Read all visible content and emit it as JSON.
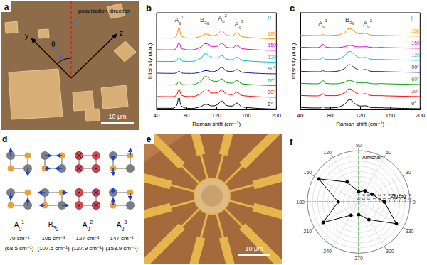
{
  "chart_data": [
    {
      "type": "line",
      "title": "b",
      "subtitle": "//",
      "xlabel": "Raman shift (cm⁻¹)",
      "ylabel": "Intensity (a.u.)",
      "x": [
        40,
        60,
        66,
        70,
        74,
        85,
        98,
        106,
        114,
        121,
        127,
        134,
        141,
        147,
        155,
        200
      ],
      "xlim": [
        40,
        200
      ],
      "xticks": [
        40,
        80,
        120,
        160,
        200
      ],
      "ylim": [
        0,
        6.6
      ],
      "tick_labels": "x",
      "series": [
        {
          "name": "0°",
          "color": "#000000",
          "values": [
            0.08,
            0.08,
            0.2,
            0.8,
            0.2,
            0.07,
            0.17,
            0.35,
            0.24,
            0.32,
            0.57,
            0.26,
            0.23,
            0.43,
            0.16,
            0.03
          ]
        },
        {
          "name": "30°",
          "color": "#ff0000",
          "values": [
            0.88,
            0.87,
            0.95,
            1.35,
            0.95,
            0.88,
            1.05,
            1.35,
            1.12,
            1.13,
            1.33,
            1.04,
            1.01,
            1.17,
            0.94,
            0.83
          ]
        },
        {
          "name": "60°",
          "color": "#00a000",
          "values": [
            1.68,
            1.67,
            1.7,
            1.9,
            1.7,
            1.68,
            1.89,
            2.25,
            1.96,
            1.92,
            2.08,
            1.82,
            1.8,
            1.97,
            1.74,
            1.63
          ]
        },
        {
          "name": "90°",
          "color": "#1a1aa0",
          "values": [
            2.48,
            2.46,
            2.48,
            2.6,
            2.48,
            2.46,
            2.53,
            2.65,
            2.58,
            2.66,
            2.86,
            2.62,
            2.59,
            2.72,
            2.53,
            2.43
          ]
        },
        {
          "name": "120°",
          "color": "#00c0d0",
          "values": [
            3.28,
            3.27,
            3.31,
            3.55,
            3.31,
            3.28,
            3.47,
            3.8,
            3.54,
            3.51,
            3.68,
            3.42,
            3.4,
            3.57,
            3.34,
            3.23
          ]
        },
        {
          "name": "150°",
          "color": "#e000e0",
          "values": [
            4.08,
            4.07,
            4.15,
            4.55,
            4.15,
            4.07,
            4.23,
            4.5,
            4.3,
            4.32,
            4.52,
            4.24,
            4.21,
            4.37,
            4.14,
            4.03
          ]
        },
        {
          "name": "180°",
          "color": "#ff8c00",
          "values": [
            4.88,
            4.87,
            4.99,
            5.55,
            4.99,
            4.87,
            4.97,
            5.15,
            5.04,
            5.12,
            5.37,
            5.06,
            5.03,
            5.23,
            4.96,
            4.83
          ]
        }
      ],
      "annotations": [
        {
          "base": "A",
          "sub": "g",
          "sup": "1",
          "x": 70,
          "y": 6.1
        },
        {
          "base": "B",
          "sub": "3g",
          "x": 104,
          "y": 6.1
        },
        {
          "base": "A",
          "sub": "g",
          "sup": "2",
          "x": 128,
          "y": 6.2
        },
        {
          "base": "A",
          "sub": "g",
          "sup": "3",
          "x": 150,
          "y": 5.8
        }
      ]
    },
    {
      "type": "line",
      "title": "c",
      "subtitle": "⊥",
      "xlabel": "Raman shift (cm⁻¹)",
      "ylabel": "Intensity (a.u.)",
      "x": [
        40,
        60,
        66,
        70,
        74,
        85,
        98,
        106,
        114,
        121,
        127,
        134,
        141,
        147,
        155,
        200
      ],
      "xlim": [
        40,
        200
      ],
      "xticks": [
        40,
        80,
        120,
        160,
        200
      ],
      "ylim": [
        0,
        4
      ],
      "tick_labels": "x",
      "series": [
        {
          "name": "0°",
          "color": "#000000",
          "values": [
            0.08,
            0.06,
            0.06,
            0.1,
            0.06,
            0.07,
            0.19,
            0.4,
            0.22,
            0.14,
            0.15,
            0.08,
            0.07,
            0.07,
            0.06,
            0.03
          ]
        },
        {
          "name": "30°",
          "color": "#ff0000",
          "values": [
            0.58,
            0.56,
            0.57,
            0.65,
            0.57,
            0.57,
            0.67,
            0.85,
            0.69,
            0.63,
            0.65,
            0.58,
            0.57,
            0.57,
            0.56,
            0.53
          ]
        },
        {
          "name": "60°",
          "color": "#00a000",
          "values": [
            1.08,
            1.06,
            1.08,
            1.2,
            1.08,
            1.06,
            1.11,
            1.2,
            1.12,
            1.1,
            1.11,
            1.07,
            1.06,
            1.07,
            1.06,
            1.03
          ]
        },
        {
          "name": "90°",
          "color": "#1a1aa0",
          "values": [
            1.58,
            1.56,
            1.56,
            1.6,
            1.56,
            1.57,
            1.67,
            1.85,
            1.69,
            1.63,
            1.65,
            1.58,
            1.57,
            1.57,
            1.56,
            1.53
          ]
        },
        {
          "name": "120°",
          "color": "#00c0d0",
          "values": [
            2.08,
            2.06,
            2.07,
            2.15,
            2.07,
            2.07,
            2.19,
            2.4,
            2.22,
            2.14,
            2.15,
            2.08,
            2.07,
            2.07,
            2.06,
            2.03
          ]
        },
        {
          "name": "150°",
          "color": "#e000e0",
          "values": [
            2.58,
            2.56,
            2.58,
            2.7,
            2.58,
            2.56,
            2.59,
            2.65,
            2.6,
            2.59,
            2.6,
            2.57,
            2.56,
            2.57,
            2.56,
            2.53
          ]
        },
        {
          "name": "180°",
          "color": "#ff8c00",
          "values": [
            3.08,
            3.06,
            3.06,
            3.1,
            3.06,
            3.07,
            3.17,
            3.35,
            3.19,
            3.13,
            3.15,
            3.08,
            3.07,
            3.07,
            3.06,
            3.03
          ]
        }
      ],
      "annotations": [
        {
          "base": "A",
          "sub": "g",
          "sup": "1",
          "x": 70,
          "y": 3.55
        },
        {
          "base": "B",
          "sub": "3g",
          "x": 106,
          "y": 3.7
        },
        {
          "base": "A",
          "sub": "g",
          "sup": "2",
          "x": 130,
          "y": 3.55
        }
      ]
    },
    {
      "type": "polar",
      "title": "f",
      "color": "#000000",
      "marker": "circle",
      "x": [
        0,
        30,
        60,
        90,
        120,
        150,
        180,
        210,
        240,
        270,
        300,
        330
      ],
      "values": [
        1.4,
        1.0,
        0.9,
        0.8,
        1.3,
        2.2,
        1.2,
        2.0,
        1.0,
        0.9,
        1.2,
        2.1
      ],
      "xlim": [
        0,
        360
      ],
      "xticks": [
        0,
        30,
        60,
        90,
        120,
        150,
        180,
        210,
        240,
        270,
        300,
        330
      ],
      "ylim": [
        0.4,
        2.4
      ],
      "yticks": [
        0.4,
        0.6,
        0.8,
        {
          "value": 1,
          "label": "1.0"
        },
        1.2,
        1.4,
        1.6,
        1.8,
        {
          "value": 2,
          "label": "2.0"
        },
        2.2,
        2.4
      ],
      "grid": true,
      "annotations": [
        {
          "text": "Armchair",
          "x": 90,
          "color": "#2ca02c",
          "line_style": "dashed"
        },
        {
          "text": "Zigzag",
          "x": 0,
          "color": "#e02020",
          "line_style": "dotted"
        }
      ]
    }
  ],
  "panel_a": {
    "title": "a",
    "theta": "θ",
    "y_axis": "y",
    "z_axis": "z",
    "polarization": "polarization direction",
    "scale_bar": "10 μm"
  },
  "panel_d": {
    "title": "d",
    "modes": [
      {
        "base": "A",
        "sub": "g",
        "sup": "1",
        "freq": "70 cm⁻¹",
        "calc": "(68.5 cm⁻¹)"
      },
      {
        "base": "B",
        "sub": "3g",
        "freq": "106 cm⁻¹",
        "calc": "(107.5 cm⁻¹)"
      },
      {
        "base": "A",
        "sub": "g",
        "sup": "2",
        "freq": "127 cm⁻¹",
        "calc": "(127.9 cm⁻¹)"
      },
      {
        "base": "A",
        "sub": "g",
        "sup": "3",
        "freq": "147 cm⁻¹",
        "calc": "(153.9 cm⁻¹)"
      }
    ]
  },
  "panel_e": {
    "title": "e",
    "scale_bar": "10 μm"
  }
}
